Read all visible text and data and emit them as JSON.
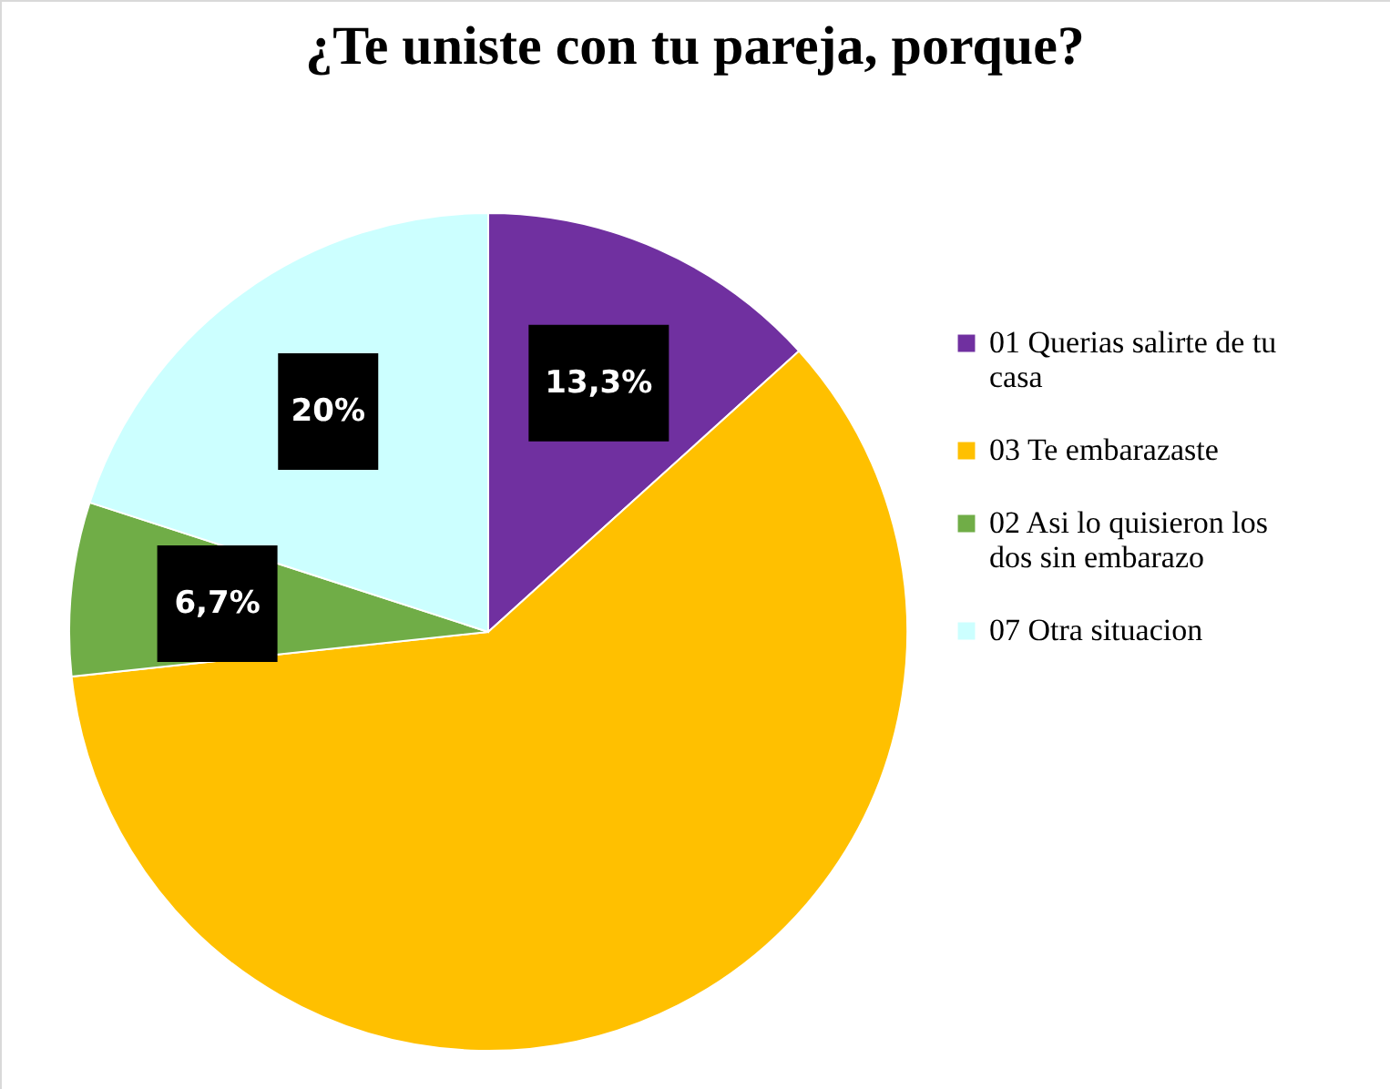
{
  "chart_data": {
    "type": "pie",
    "title": "¿Te uniste con tu pareja, porque?",
    "categories": [
      "01 Querias salirte de tu casa",
      "03 Te embarazaste",
      "02 Asi lo quisieron los dos sin embarazo",
      "07 Otra situacion"
    ],
    "values": [
      13.3,
      60,
      6.7,
      20
    ],
    "colors": [
      "#7030a0",
      "#ffc000",
      "#70ad47",
      "#ccffff"
    ],
    "value_labels": [
      "13,3%",
      null,
      "6,7%",
      "20%"
    ],
    "legend": "right"
  }
}
